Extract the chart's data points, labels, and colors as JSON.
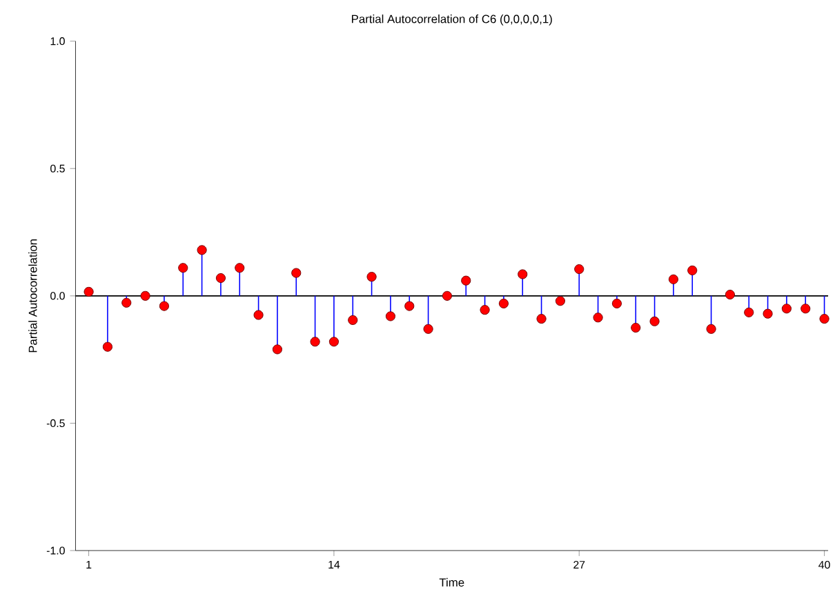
{
  "chart_data": {
    "type": "lollipop",
    "title": "Partial Autocorrelation of C6 (0,0,0,0,1)",
    "xlabel": "Time",
    "ylabel": "Partial Autocorrelation",
    "x": [
      1,
      2,
      3,
      4,
      5,
      6,
      7,
      8,
      9,
      10,
      11,
      12,
      13,
      14,
      15,
      16,
      17,
      18,
      19,
      20,
      21,
      22,
      23,
      24,
      25,
      26,
      27,
      28,
      29,
      30,
      31,
      32,
      33,
      34,
      35,
      36,
      37,
      38,
      39,
      40
    ],
    "series": [
      {
        "color": "#ff0000",
        "values": [
          0.016,
          -0.2,
          -0.027,
          0.0,
          -0.04,
          0.11,
          0.18,
          0.07,
          0.11,
          -0.075,
          -0.21,
          0.09,
          -0.18,
          -0.18,
          -0.095,
          0.075,
          -0.08,
          -0.04,
          -0.13,
          0.0,
          0.06,
          -0.055,
          -0.03,
          0.085,
          -0.09,
          -0.02,
          0.105,
          -0.085,
          -0.03,
          -0.125,
          -0.1,
          0.065,
          0.1,
          -0.13,
          0.005,
          -0.065,
          -0.07,
          -0.05,
          -0.05,
          -0.09
        ]
      }
    ],
    "xlim": [
      0.3,
      40.2
    ],
    "xticks": [
      1,
      14,
      27,
      40
    ],
    "ylim": [
      -1.0,
      1.0
    ],
    "yticks": [
      {
        "value": -1.0,
        "label": "-1.0"
      },
      {
        "value": -0.5,
        "label": "-0.5"
      },
      {
        "value": 0.0,
        "label": "0.0"
      },
      {
        "value": 0.5,
        "label": "0.5"
      },
      {
        "value": 1.0,
        "label": "1.0"
      }
    ],
    "ref_lines": [
      {
        "axis": "y",
        "value": 0,
        "color": "#000000"
      }
    ],
    "marker": "circle"
  }
}
